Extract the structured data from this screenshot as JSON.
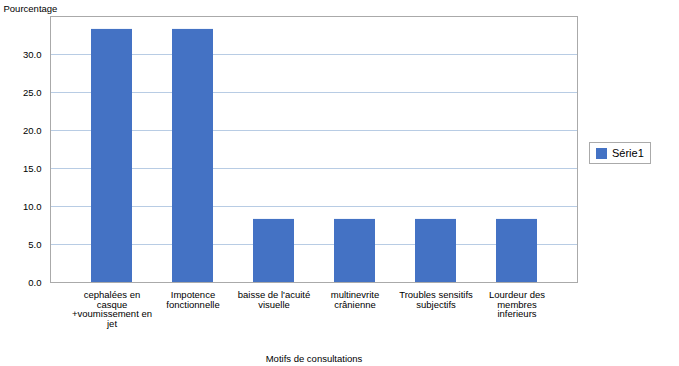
{
  "chart_data": {
    "type": "bar",
    "categories": [
      "cephalées en\ncasque\n+voumissement en\njet",
      "Impotence\nfonctionnelle",
      "baisse de l'acuité\nvisuelle",
      "multinevrite\ncrânienne",
      "Troubles sensitifs\nsubjectifs",
      "Lourdeur des\nmembres\ninferieurs"
    ],
    "series": [
      {
        "name": "Série1",
        "color": "#4472C4",
        "values": [
          33.3,
          33.3,
          8.3,
          8.3,
          8.3,
          8.3
        ]
      }
    ],
    "xlabel": "Motifs de consultations",
    "ylabel": "Pourcentage",
    "ylim": [
      0,
      35
    ],
    "yticks": [
      {
        "value": 0,
        "label": "0.0"
      },
      {
        "value": 5,
        "label": "5.0"
      },
      {
        "value": 10,
        "label": "10.0"
      },
      {
        "value": 15,
        "label": "15.0"
      },
      {
        "value": 20,
        "label": "20.0"
      },
      {
        "value": 25,
        "label": "25.0"
      },
      {
        "value": 30,
        "label": "30.0"
      }
    ],
    "grid": true,
    "legend": "right"
  }
}
